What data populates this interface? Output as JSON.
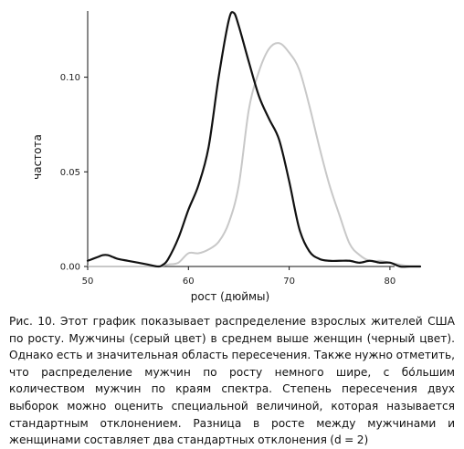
{
  "chart_data": {
    "type": "line",
    "title": "",
    "xlabel": "рост (дюймы)",
    "ylabel": "частота",
    "xlim": [
      50,
      83
    ],
    "ylim": [
      0,
      0.135
    ],
    "x_ticks": [
      50,
      60,
      70,
      80
    ],
    "y_ticks": [
      0.0,
      0.05,
      0.1
    ],
    "x_tick_labels": [
      "50",
      "60",
      "70",
      "80"
    ],
    "y_tick_labels": [
      "0.00",
      "0.05",
      "0.10"
    ],
    "grid": false,
    "legend": "none",
    "series": [
      {
        "color": "#c8c8c8",
        "x": [
          50,
          51,
          52,
          53,
          54,
          55,
          56,
          57,
          58,
          59,
          60,
          61,
          62,
          63,
          64,
          65,
          66,
          67,
          68,
          69,
          70,
          71,
          72,
          73,
          74,
          75,
          76,
          77,
          78,
          79,
          80,
          81,
          82
        ],
        "values": [
          0.0,
          0.0,
          0.0,
          0.0,
          0.0,
          0.0,
          0.0,
          0.0,
          0.001,
          0.002,
          0.007,
          0.007,
          0.009,
          0.013,
          0.023,
          0.043,
          0.083,
          0.103,
          0.115,
          0.118,
          0.113,
          0.104,
          0.085,
          0.063,
          0.043,
          0.027,
          0.012,
          0.006,
          0.003,
          0.003,
          0.002,
          0.001,
          0.0
        ]
      },
      {
        "color": "#111111",
        "x": [
          50,
          50.5,
          51,
          51.5,
          52,
          52.5,
          53,
          54,
          55,
          56,
          57,
          57.5,
          58,
          59,
          60,
          61,
          62,
          63,
          64,
          64.5,
          65,
          66,
          67,
          68,
          69,
          70,
          71,
          72,
          73,
          74,
          75,
          76,
          77,
          78,
          79,
          80,
          81,
          82,
          83
        ],
        "values": [
          0.003,
          0.004,
          0.005,
          0.006,
          0.006,
          0.005,
          0.004,
          0.003,
          0.002,
          0.001,
          0.0,
          0.001,
          0.004,
          0.015,
          0.03,
          0.043,
          0.063,
          0.1,
          0.13,
          0.134,
          0.127,
          0.108,
          0.09,
          0.078,
          0.067,
          0.045,
          0.02,
          0.008,
          0.004,
          0.003,
          0.003,
          0.003,
          0.002,
          0.003,
          0.002,
          0.002,
          0.0,
          0.0,
          0.0
        ]
      }
    ]
  },
  "caption": "Рис. 10. Этот график показывает распределение взрослых жителей США по росту. Мужчины (серый цвет) в среднем выше женщин (черный цвет). Однако есть и значительная область пересечения. Также нужно отметить, что распределение мужчин по росту немного шире, с бо́льшим количеством мужчин по краям спектра. Степень пересечения двух выборок можно оценить специальной величиной, которая называется стандартным отклонением. Разница в росте между мужчинами и женщинами составляет два стандартных отклонения (d = 2)"
}
